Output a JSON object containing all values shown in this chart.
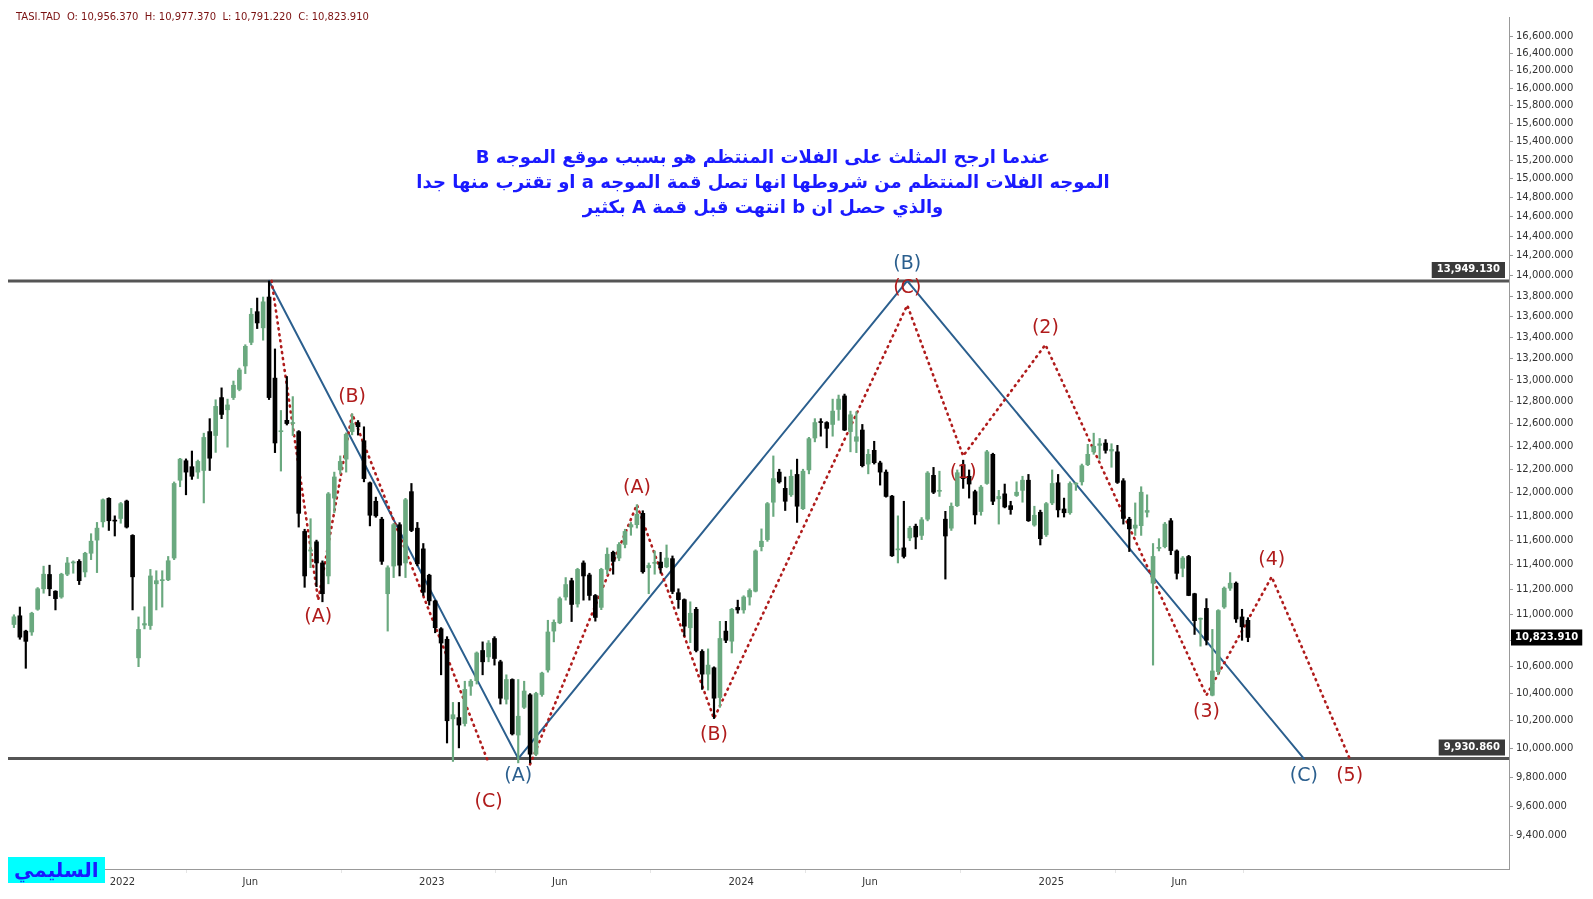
{
  "chart_data": {
    "type": "candlestick",
    "title": "عندما ارجح المثلث على الفلات المنتظم هو بسبب موقع الموجه B\nالموجه الفلات المنتظم من شروطها انها تصل قمة الموجه a او تقترب منها جدا\nوالذي حصل ان b انتهت قبل قمة A بكثير",
    "subtitle": "TASI.TAD  O: 10,956.370  H: 10,977.370  L: 10,791.220  C: 10,823.910",
    "x": [
      "2021-08-26",
      "2021-09-02",
      "2021-09-09",
      "2021-09-16",
      "2021-09-23",
      "2021-09-30",
      "2021-10-07",
      "2021-10-14",
      "2021-10-21",
      "2021-10-28",
      "2021-11-04",
      "2021-11-11",
      "2021-11-18",
      "2021-11-25",
      "2021-12-02",
      "2021-12-09",
      "2021-12-16",
      "2021-12-23",
      "2021-12-30",
      "2022-01-06",
      "2022-01-13",
      "2022-01-20",
      "2022-01-27",
      "2022-02-03",
      "2022-02-10",
      "2022-02-17",
      "2022-02-24",
      "2022-03-03",
      "2022-03-10",
      "2022-03-17",
      "2022-03-24",
      "2022-03-31",
      "2022-04-07",
      "2022-04-14",
      "2022-04-21",
      "2022-04-28",
      "2022-05-05",
      "2022-05-12",
      "2022-05-19",
      "2022-05-26",
      "2022-06-02",
      "2022-06-09",
      "2022-06-16",
      "2022-06-23",
      "2022-06-30",
      "2022-07-07",
      "2022-07-14",
      "2022-07-21",
      "2022-07-28",
      "2022-08-04",
      "2022-08-11",
      "2022-08-18",
      "2022-08-25",
      "2022-09-01",
      "2022-09-08",
      "2022-09-15",
      "2022-09-22",
      "2022-09-29",
      "2022-10-06",
      "2022-10-13",
      "2022-10-20",
      "2022-10-27",
      "2022-11-03",
      "2022-11-10",
      "2022-11-17",
      "2022-11-24",
      "2022-12-01",
      "2022-12-08",
      "2022-12-15",
      "2022-12-22",
      "2022-12-29",
      "2023-01-05",
      "2023-01-12",
      "2023-01-19",
      "2023-01-26",
      "2023-02-02",
      "2023-02-09",
      "2023-02-16",
      "2023-02-23",
      "2023-03-02",
      "2023-03-09",
      "2023-03-16",
      "2023-03-23",
      "2023-03-30",
      "2023-04-06",
      "2023-04-13",
      "2023-04-20",
      "2023-04-27",
      "2023-05-04",
      "2023-05-11",
      "2023-05-18",
      "2023-05-25",
      "2023-06-01",
      "2023-06-08",
      "2023-06-15",
      "2023-06-22",
      "2023-06-29",
      "2023-07-06",
      "2023-07-13",
      "2023-07-20",
      "2023-07-27",
      "2023-08-03",
      "2023-08-10",
      "2023-08-17",
      "2023-08-24",
      "2023-08-31",
      "2023-09-07",
      "2023-09-14",
      "2023-09-21",
      "2023-09-28",
      "2023-10-05",
      "2023-10-12",
      "2023-10-19",
      "2023-10-26",
      "2023-11-02",
      "2023-11-09",
      "2023-11-16",
      "2023-11-23",
      "2023-11-30",
      "2023-12-07",
      "2023-12-14",
      "2023-12-21",
      "2023-12-28",
      "2024-01-04",
      "2024-01-11",
      "2024-01-18",
      "2024-01-25",
      "2024-02-01",
      "2024-02-08",
      "2024-02-15",
      "2024-02-22",
      "2024-02-29",
      "2024-03-07",
      "2024-03-14",
      "2024-03-21",
      "2024-03-28",
      "2024-04-04",
      "2024-04-11",
      "2024-04-18",
      "2024-04-25",
      "2024-05-02",
      "2024-05-09",
      "2024-05-16",
      "2024-05-23",
      "2024-05-30",
      "2024-06-06",
      "2024-06-13",
      "2024-06-20",
      "2024-06-27",
      "2024-07-04",
      "2024-07-11",
      "2024-07-18",
      "2024-07-25",
      "2024-08-01",
      "2024-08-08",
      "2024-08-15",
      "2024-08-22",
      "2024-08-29",
      "2024-09-05",
      "2024-09-12",
      "2024-09-19",
      "2024-09-26",
      "2024-10-03",
      "2024-10-10",
      "2024-10-17",
      "2024-10-24",
      "2024-10-31",
      "2024-11-07",
      "2024-11-14",
      "2024-11-21",
      "2024-11-28",
      "2024-12-05",
      "2024-12-12",
      "2024-12-19",
      "2024-12-26",
      "2025-01-02",
      "2025-01-09",
      "2025-01-16",
      "2025-01-23",
      "2025-01-30",
      "2025-02-06",
      "2025-02-13",
      "2025-02-20",
      "2025-02-27",
      "2025-03-06",
      "2025-03-13",
      "2025-03-20",
      "2025-03-27",
      "2025-04-03",
      "2025-04-10",
      "2025-04-17",
      "2025-04-24",
      "2025-05-01",
      "2025-05-08",
      "2025-05-15",
      "2025-05-22",
      "2025-05-29",
      "2025-06-05",
      "2025-06-12",
      "2025-06-19",
      "2025-06-26",
      "2025-07-03",
      "2025-07-10",
      "2025-07-17",
      "2025-07-24",
      "2025-07-31",
      "2025-08-07",
      "2025-08-14",
      "2025-08-21"
    ],
    "ohlc": [
      [
        10924,
        11000,
        10900,
        10984
      ],
      [
        10992,
        11061,
        10810,
        10826
      ],
      [
        10873,
        10880,
        10589,
        10794
      ],
      [
        10866,
        11020,
        10840,
        11012
      ],
      [
        11043,
        11215,
        11035,
        11205
      ],
      [
        11205,
        11387,
        11170,
        11322
      ],
      [
        11320,
        11395,
        11150,
        11205
      ],
      [
        11186,
        11190,
        11038,
        11127
      ],
      [
        11140,
        11330,
        11130,
        11322
      ],
      [
        11322,
        11458,
        11310,
        11413
      ],
      [
        11413,
        11430,
        11330,
        11420
      ],
      [
        11426,
        11440,
        11239,
        11270
      ],
      [
        11340,
        11500,
        11300,
        11492
      ],
      [
        11492,
        11653,
        11440,
        11591
      ],
      [
        11600,
        11747,
        11335,
        11699
      ],
      [
        11752,
        11945,
        11708,
        11938
      ],
      [
        11950,
        11955,
        11680,
        11761
      ],
      [
        11761,
        11802,
        11634,
        11758
      ],
      [
        11780,
        11915,
        11740,
        11905
      ],
      [
        11927,
        11935,
        11700,
        11708
      ],
      [
        11639,
        11645,
        11038,
        11301
      ],
      [
        10668,
        10983,
        10601,
        10886
      ],
      [
        10920,
        11063,
        10890,
        10931
      ],
      [
        10916,
        11361,
        10886,
        11308
      ],
      [
        11245,
        11350,
        11038,
        11270
      ],
      [
        11270,
        11350,
        11060,
        11278
      ],
      [
        11277,
        11466,
        11270,
        11431
      ],
      [
        11453,
        12090,
        11440,
        12077
      ],
      [
        12105,
        12295,
        12049,
        12288
      ],
      [
        12274,
        12290,
        11980,
        12175
      ],
      [
        12222,
        12359,
        12112,
        12139
      ],
      [
        12175,
        12280,
        12120,
        12268
      ],
      [
        12189,
        12517,
        11911,
        12479
      ],
      [
        12531,
        12647,
        12189,
        12296
      ],
      [
        12496,
        12818,
        12347,
        12758
      ],
      [
        12838,
        12927,
        12647,
        12685
      ],
      [
        12727,
        12824,
        12393,
        12771
      ],
      [
        12838,
        12990,
        12820,
        12951
      ],
      [
        12913,
        13110,
        12900,
        13093
      ],
      [
        13130,
        13330,
        13059,
        13315
      ],
      [
        13352,
        13679,
        13330,
        13622
      ],
      [
        13647,
        13780,
        13484,
        13538
      ],
      [
        13491,
        13790,
        13373,
        13743
      ],
      [
        13790,
        13949,
        12820,
        12838
      ],
      [
        13017,
        13290,
        12345,
        12430
      ],
      [
        12530,
        12721,
        12184,
        12537
      ],
      [
        12632,
        13032,
        12590,
        12603
      ],
      [
        12603,
        12847,
        12496,
        12610
      ],
      [
        12531,
        12540,
        11708,
        11823
      ],
      [
        11672,
        11690,
        11217,
        11308
      ],
      [
        11510,
        11778,
        11375,
        11520
      ],
      [
        11586,
        11600,
        11222,
        11413
      ],
      [
        11413,
        11430,
        11102,
        11166
      ],
      [
        11308,
        12000,
        11245,
        11988
      ],
      [
        11952,
        12175,
        11828,
        12133
      ],
      [
        12194,
        12316,
        12160,
        12268
      ],
      [
        12288,
        12520,
        12175,
        12508
      ],
      [
        12531,
        12691,
        12502,
        12604
      ],
      [
        12612,
        12630,
        12500,
        12574
      ],
      [
        12450,
        12574,
        12091,
        12119
      ],
      [
        12083,
        12090,
        11718,
        11807
      ],
      [
        11925,
        11960,
        11790,
        11802
      ],
      [
        11774,
        11790,
        11401,
        11426
      ],
      [
        11166,
        11390,
        10873,
        11374
      ],
      [
        11388,
        11740,
        11295,
        11728
      ],
      [
        11728,
        11745,
        11308,
        11395
      ],
      [
        11413,
        11950,
        11295,
        11938
      ],
      [
        12007,
        12077,
        11670,
        11680
      ],
      [
        11699,
        11747,
        11390,
        11406
      ],
      [
        11528,
        11572,
        11152,
        11178
      ],
      [
        11314,
        11322,
        11076,
        11109
      ],
      [
        11109,
        11115,
        10860,
        10899
      ],
      [
        10891,
        10900,
        10540,
        10781
      ],
      [
        10810,
        10830,
        10041,
        10201
      ],
      [
        10215,
        10335,
        9910,
        10245
      ],
      [
        10224,
        10335,
        10006,
        10170
      ],
      [
        10181,
        10492,
        10163,
        10431
      ],
      [
        10455,
        10505,
        10387,
        10492
      ],
      [
        10496,
        10713,
        10471,
        10705
      ],
      [
        10724,
        10790,
        10540,
        10638
      ],
      [
        10675,
        10800,
        10638,
        10781
      ],
      [
        10816,
        10830,
        10613,
        10663
      ],
      [
        10638,
        10650,
        10323,
        10366
      ],
      [
        10358,
        10540,
        10323,
        10505
      ],
      [
        10505,
        10510,
        10098,
        10106
      ],
      [
        10098,
        10505,
        9900,
        10234
      ],
      [
        10299,
        10492,
        10290,
        10419
      ],
      [
        10391,
        10400,
        9900,
        9961
      ],
      [
        9961,
        10410,
        9950,
        10401
      ],
      [
        10393,
        10560,
        10380,
        10553
      ],
      [
        10576,
        10957,
        10560,
        10866
      ],
      [
        10873,
        10960,
        10790,
        10941
      ],
      [
        10937,
        11140,
        10930,
        11127
      ],
      [
        11140,
        11295,
        11115,
        11239
      ],
      [
        11270,
        11290,
        10947,
        11081
      ],
      [
        11085,
        11370,
        11060,
        11361
      ],
      [
        11413,
        11430,
        11115,
        11308
      ],
      [
        11316,
        11330,
        11115,
        11152
      ],
      [
        11152,
        11160,
        10950,
        10979
      ],
      [
        11058,
        11370,
        11040,
        11361
      ],
      [
        11361,
        11536,
        11322,
        11484
      ],
      [
        11500,
        11510,
        11322,
        11426
      ],
      [
        11453,
        11580,
        11431,
        11564
      ],
      [
        11564,
        11690,
        11536,
        11672
      ],
      [
        11708,
        11747,
        11640,
        11728
      ],
      [
        11728,
        11896,
        11700,
        11815
      ],
      [
        11823,
        11845,
        11330,
        11342
      ],
      [
        11374,
        11413,
        11166,
        11393
      ],
      [
        11410,
        11511,
        11322,
        11416
      ],
      [
        11420,
        11500,
        11330,
        11374
      ],
      [
        11382,
        11560,
        11374,
        11453
      ],
      [
        11448,
        11470,
        11166,
        11184
      ],
      [
        11174,
        11205,
        11050,
        11119
      ],
      [
        11119,
        11125,
        10834,
        10911
      ],
      [
        10899,
        11102,
        10784,
        11012
      ],
      [
        11043,
        11058,
        10713,
        10724
      ],
      [
        10717,
        10730,
        10431,
        10545
      ],
      [
        10545,
        10736,
        10426,
        10613
      ],
      [
        10593,
        10600,
        10217,
        10366
      ],
      [
        10371,
        10949,
        10299,
        10816
      ],
      [
        10873,
        10949,
        10784,
        10802
      ],
      [
        10795,
        11050,
        10705,
        11043
      ],
      [
        11058,
        11115,
        11012,
        11038
      ],
      [
        11038,
        11150,
        11012,
        11140
      ],
      [
        11140,
        11205,
        11076,
        11192
      ],
      [
        11186,
        11520,
        11180,
        11511
      ],
      [
        11546,
        11693,
        11511,
        11591
      ],
      [
        11604,
        11915,
        11590,
        11905
      ],
      [
        11917,
        12316,
        11797,
        12119
      ],
      [
        12175,
        12200,
        12080,
        12091
      ],
      [
        12035,
        12133,
        11847,
        11925
      ],
      [
        11980,
        12194,
        11966,
        12139
      ],
      [
        12155,
        12288,
        11747,
        11883
      ],
      [
        11862,
        12200,
        11855,
        12183
      ],
      [
        12194,
        12480,
        12160,
        12468
      ],
      [
        12474,
        12647,
        12440,
        12612
      ],
      [
        12618,
        12647,
        12490,
        12612
      ],
      [
        12612,
        12620,
        12387,
        12560
      ],
      [
        12595,
        12824,
        12490,
        12715
      ],
      [
        12730,
        12861,
        12632,
        12824
      ],
      [
        12853,
        12870,
        12540,
        12545
      ],
      [
        12531,
        12715,
        12352,
        12682
      ],
      [
        12445,
        12710,
        12345,
        12485
      ],
      [
        12545,
        12595,
        12220,
        12231
      ],
      [
        12245,
        12373,
        12160,
        12330
      ],
      [
        12365,
        12445,
        12245,
        12257
      ],
      [
        12255,
        12270,
        12063,
        12175
      ],
      [
        12175,
        12194,
        11960,
        11966
      ],
      [
        11969,
        11975,
        11466,
        11471
      ],
      [
        11520,
        11802,
        11413,
        11525
      ],
      [
        11536,
        11925,
        11453,
        11466
      ],
      [
        11618,
        11715,
        11595,
        11699
      ],
      [
        11715,
        11733,
        11528,
        11626
      ],
      [
        11639,
        11788,
        11604,
        11769
      ],
      [
        11774,
        12180,
        11760,
        12167
      ],
      [
        12147,
        12216,
        11990,
        12002
      ],
      [
        12010,
        12183,
        11966,
        12018
      ],
      [
        11774,
        11840,
        11283,
        11634
      ],
      [
        11699,
        11911,
        11680,
        11883
      ],
      [
        11888,
        12194,
        11880,
        12170
      ],
      [
        12240,
        12279,
        12035,
        12119
      ],
      [
        12139,
        12194,
        11952,
        12072
      ],
      [
        12007,
        12020,
        11733,
        11810
      ],
      [
        11838,
        12060,
        11807,
        12046
      ],
      [
        12077,
        12365,
        12070,
        12352
      ],
      [
        12330,
        12340,
        11896,
        11925
      ],
      [
        11946,
        12018,
        11733,
        11966
      ],
      [
        11988,
        12072,
        11869,
        11877
      ],
      [
        11888,
        11925,
        11815,
        11855
      ],
      [
        11974,
        12091,
        11966,
        12002
      ],
      [
        12018,
        12139,
        11917,
        12105
      ],
      [
        12105,
        12155,
        11755,
        11761
      ],
      [
        11725,
        11883,
        11715,
        11807
      ],
      [
        11832,
        11850,
        11560,
        11612
      ],
      [
        11644,
        11915,
        11630,
        11905
      ],
      [
        11911,
        12194,
        11896,
        12077
      ],
      [
        12083,
        12155,
        11792,
        11852
      ],
      [
        11860,
        11952,
        11792,
        11828
      ],
      [
        11828,
        12091,
        11815,
        12077
      ],
      [
        12072,
        12083,
        12018,
        12075
      ],
      [
        12091,
        12245,
        12063,
        12231
      ],
      [
        12240,
        12418,
        12231,
        12330
      ],
      [
        12352,
        12517,
        12330,
        12401
      ],
      [
        12409,
        12470,
        12288,
        12423
      ],
      [
        12429,
        12460,
        12340,
        12365
      ],
      [
        12359,
        12423,
        12217,
        12373
      ],
      [
        12352,
        12409,
        12077,
        12086
      ],
      [
        12100,
        12119,
        11733,
        11780
      ],
      [
        11774,
        11790,
        11506,
        11693
      ],
      [
        11699,
        11911,
        11639,
        11725
      ],
      [
        11720,
        12049,
        11639,
        12002
      ],
      [
        11832,
        11980,
        11792,
        11847
      ],
      [
        11250,
        11572,
        10613,
        11466
      ],
      [
        11532,
        11612,
        11511,
        11536
      ],
      [
        11546,
        11747,
        11536,
        11733
      ],
      [
        11761,
        11780,
        11480,
        11514
      ],
      [
        11511,
        11520,
        11283,
        11329
      ],
      [
        11370,
        11466,
        11301,
        11453
      ],
      [
        11466,
        11475,
        11150,
        11152
      ],
      [
        11166,
        11170,
        10847,
        10954
      ],
      [
        10965,
        10975,
        10757,
        10968
      ],
      [
        11050,
        11127,
        10766,
        10803
      ],
      [
        10388,
        10886,
        10383,
        10569
      ],
      [
        10564,
        11040,
        10540,
        11033
      ],
      [
        11061,
        11220,
        11050,
        11210
      ],
      [
        11210,
        11335,
        11192,
        11250
      ],
      [
        11250,
        11260,
        10940,
        10967
      ],
      [
        10983,
        11043,
        10802,
        10906
      ],
      [
        10956.37,
        10977.37,
        10791.22,
        10823.91
      ]
    ],
    "colors": [
      "#6aa97f",
      "#000000",
      "#000000",
      "#6aa97f",
      "#6aa97f",
      "#6aa97f",
      "#000000",
      "#000000",
      "#6aa97f",
      "#6aa97f",
      "#6aa97f",
      "#000000",
      "#6aa97f",
      "#6aa97f",
      "#6aa97f",
      "#6aa97f",
      "#000000",
      "#000000",
      "#6aa97f",
      "#000000",
      "#000000",
      "#6aa97f",
      "#6aa97f",
      "#6aa97f",
      "#6aa97f",
      "#6aa97f",
      "#6aa97f",
      "#6aa97f",
      "#6aa97f",
      "#000000",
      "#000000",
      "#6aa97f",
      "#6aa97f",
      "#000000",
      "#6aa97f",
      "#000000",
      "#6aa97f",
      "#6aa97f",
      "#6aa97f",
      "#6aa97f",
      "#6aa97f",
      "#000000",
      "#6aa97f",
      "#000000",
      "#000000",
      "#6aa97f",
      "#000000",
      "#6aa97f",
      "#000000",
      "#000000",
      "#6aa97f",
      "#000000",
      "#000000",
      "#6aa97f",
      "#6aa97f",
      "#6aa97f",
      "#6aa97f",
      "#6aa97f",
      "#000000",
      "#000000",
      "#000000",
      "#000000",
      "#000000",
      "#6aa97f",
      "#6aa97f",
      "#000000",
      "#6aa97f",
      "#000000",
      "#000000",
      "#000000",
      "#000000",
      "#000000",
      "#000000",
      "#000000",
      "#6aa97f",
      "#000000",
      "#6aa97f",
      "#6aa97f",
      "#6aa97f",
      "#000000",
      "#6aa97f",
      "#000000",
      "#000000",
      "#6aa97f",
      "#000000",
      "#6aa97f",
      "#6aa97f",
      "#000000",
      "#6aa97f",
      "#6aa97f",
      "#6aa97f",
      "#6aa97f",
      "#6aa97f",
      "#6aa97f",
      "#000000",
      "#6aa97f",
      "#000000",
      "#000000",
      "#000000",
      "#6aa97f",
      "#6aa97f",
      "#000000",
      "#6aa97f",
      "#6aa97f",
      "#6aa97f",
      "#6aa97f",
      "#000000",
      "#6aa97f",
      "#6aa97f",
      "#000000",
      "#6aa97f",
      "#000000",
      "#000000",
      "#000000",
      "#6aa97f",
      "#000000",
      "#000000",
      "#6aa97f",
      "#000000",
      "#6aa97f",
      "#000000",
      "#6aa97f",
      "#000000",
      "#6aa97f",
      "#6aa97f",
      "#6aa97f",
      "#6aa97f",
      "#6aa97f",
      "#6aa97f",
      "#000000",
      "#000000",
      "#6aa97f",
      "#000000",
      "#6aa97f",
      "#6aa97f",
      "#6aa97f",
      "#000000",
      "#000000",
      "#6aa97f",
      "#6aa97f",
      "#000000",
      "#6aa97f",
      "#6aa97f",
      "#000000",
      "#6aa97f",
      "#000000",
      "#000000",
      "#000000",
      "#000000",
      "#6aa97f",
      "#000000",
      "#6aa97f",
      "#000000",
      "#6aa97f",
      "#6aa97f",
      "#000000",
      "#6aa97f",
      "#000000",
      "#6aa97f",
      "#6aa97f",
      "#000000",
      "#000000",
      "#000000",
      "#6aa97f",
      "#6aa97f",
      "#000000",
      "#6aa97f",
      "#000000",
      "#000000",
      "#6aa97f",
      "#6aa97f",
      "#000000",
      "#6aa97f",
      "#000000",
      "#6aa97f",
      "#6aa97f",
      "#000000",
      "#000000",
      "#6aa97f",
      "#6aa97f",
      "#6aa97f",
      "#6aa97f",
      "#6aa97f",
      "#6aa97f",
      "#000000",
      "#6aa97f",
      "#000000",
      "#000000",
      "#000000",
      "#6aa97f",
      "#6aa97f",
      "#6aa97f",
      "#6aa97f",
      "#6aa97f",
      "#6aa97f",
      "#000000",
      "#000000",
      "#6aa97f",
      "#000000",
      "#000000",
      "#6aa97f",
      "#000000",
      "#6aa97f",
      "#6aa97f",
      "#6aa97f",
      "#6aa97f",
      "#000000",
      "#000000",
      "#000000"
    ],
    "series": [
      {
        "type": "line",
        "color": "#2b5f8e",
        "line_style": "solid",
        "x": [
          "2022-06-23",
          "2023-04-13",
          "2024-07-15",
          "2025-10-26"
        ],
        "values": [
          13949,
          9930,
          13949,
          9930
        ]
      },
      {
        "type": "line",
        "color": "#b01c1c",
        "line_style": "dotted",
        "x": [
          "2022-06-26",
          "2022-08-20",
          "2022-09-29",
          "2023-03-09"
        ],
        "values": [
          13949,
          11115,
          12691,
          9900
        ]
      },
      {
        "type": "line",
        "color": "#b01c1c",
        "line_style": "dotted",
        "x": [
          "2023-04-27",
          "2023-08-31",
          "2023-11-30",
          "2024-07-15",
          "2024-09-19",
          "2024-12-25",
          "2025-07-03",
          "2025-09-18",
          "2025-12-19"
        ],
        "values": [
          9890,
          11896,
          10217,
          13710,
          12316,
          13330,
          10387,
          11301,
          9930
        ]
      }
    ],
    "marker": "none",
    "log": true,
    "xlim": [
      "2021-08-19",
      "2026-06-25"
    ],
    "xticks": [
      {
        "value": "2022-01-01",
        "label": "2022"
      },
      {
        "value": "2022-06-01",
        "label": "Jun"
      },
      {
        "value": "2023-01-01",
        "label": "2023"
      },
      {
        "value": "2023-06-01",
        "label": "Jun"
      },
      {
        "value": "2024-01-01",
        "label": "2024"
      },
      {
        "value": "2024-06-01",
        "label": "Jun"
      },
      {
        "value": "2025-01-01",
        "label": "2025"
      },
      {
        "value": "2025-06-01",
        "label": "Jun"
      }
    ],
    "ylim": [
      9180,
      16830
    ],
    "yticks": [
      {
        "value": 9400,
        "label": "9,400.000"
      },
      {
        "value": 9600,
        "label": "9,600.000"
      },
      {
        "value": 9800,
        "label": "9,800.000"
      },
      {
        "value": 10000,
        "label": "10,000.000"
      },
      {
        "value": 10200,
        "label": "10,200.000"
      },
      {
        "value": 10400,
        "label": "10,400.000"
      },
      {
        "value": 10600,
        "label": "10,600.000"
      },
      {
        "value": 10800,
        "label": null
      },
      {
        "value": 11000,
        "label": "11,000.000"
      },
      {
        "value": 11200,
        "label": "11,200.000"
      },
      {
        "value": 11400,
        "label": "11,400.000"
      },
      {
        "value": 11600,
        "label": "11,600.000"
      },
      {
        "value": 11800,
        "label": "11,800.000"
      },
      {
        "value": 12000,
        "label": "12,000.000"
      },
      {
        "value": 12200,
        "label": "12,200.000"
      },
      {
        "value": 12400,
        "label": "12,400.000"
      },
      {
        "value": 12600,
        "label": "12,600.000"
      },
      {
        "value": 12800,
        "label": "12,800.000"
      },
      {
        "value": 13000,
        "label": "13,000.000"
      },
      {
        "value": 13200,
        "label": "13,200.000"
      },
      {
        "value": 13400,
        "label": "13,400.000"
      },
      {
        "value": 13600,
        "label": "13,600.000"
      },
      {
        "value": 13800,
        "label": "13,800.000"
      },
      {
        "value": 14000,
        "label": "14,000.000"
      },
      {
        "value": 14200,
        "label": "14,200.000"
      },
      {
        "value": 14400,
        "label": "14,400.000"
      },
      {
        "value": 14600,
        "label": "14,600.000"
      },
      {
        "value": 14800,
        "label": "14,800.000"
      },
      {
        "value": 15000,
        "label": "15,000.000"
      },
      {
        "value": 15200,
        "label": "15,200.000"
      },
      {
        "value": 15400,
        "label": "15,400.000"
      },
      {
        "value": 15600,
        "label": "15,600.000"
      },
      {
        "value": 15800,
        "label": "15,800.000"
      },
      {
        "value": 16000,
        "label": "16,000.000"
      },
      {
        "value": 16200,
        "label": "16,200.000"
      },
      {
        "value": 16400,
        "label": "16,400.000"
      },
      {
        "value": 16600,
        "label": "16,600.000"
      }
    ],
    "ref_lines": [
      {
        "axis": "y",
        "value": 13949.13,
        "label": "13,949.130",
        "color": "#555555"
      },
      {
        "axis": "y",
        "value": 9930.86,
        "label": "9,930.860",
        "color": "#555555"
      }
    ],
    "annotations": [
      "10,823.910",
      "السليمي",
      {
        "text": "(A)",
        "x": "2023-04-13",
        "y": 9930
      },
      {
        "text": "(B)",
        "x": "2024-07-15",
        "y": 13949
      },
      {
        "text": "(C)",
        "x": "2025-10-26",
        "y": 9930
      },
      {
        "text": "(A)",
        "x": "2022-08-20",
        "y": 11115
      },
      {
        "text": "(B)",
        "x": "2022-09-29",
        "y": 12691
      },
      {
        "text": "(C)",
        "x": "2023-03-09",
        "y": 9900
      },
      {
        "text": "(A)",
        "x": "2023-08-31",
        "y": 11896
      },
      {
        "text": "(B)",
        "x": "2023-11-30",
        "y": 10217
      },
      {
        "text": "(C)",
        "x": "2024-07-15",
        "y": 13710
      },
      {
        "text": "(1)",
        "x": "2024-09-19",
        "y": 12316
      },
      {
        "text": "(2)",
        "x": "2024-12-25",
        "y": 13330
      },
      {
        "text": "(3)",
        "x": "2025-07-03",
        "y": 10387
      },
      {
        "text": "(4)",
        "x": "2025-09-18",
        "y": 11301
      },
      {
        "text": "(5)",
        "x": "2025-12-19",
        "y": 9930
      }
    ]
  }
}
